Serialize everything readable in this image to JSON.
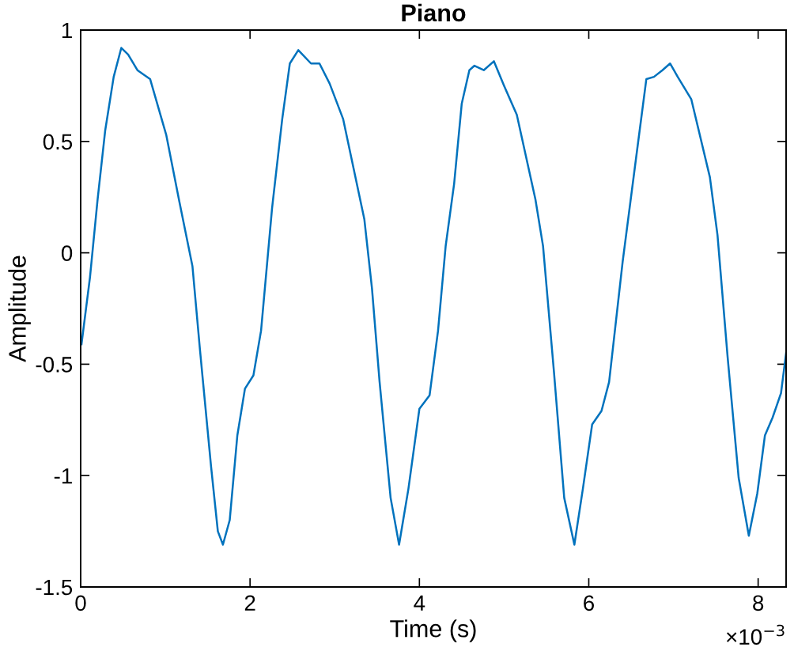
{
  "chart_data": {
    "type": "line",
    "title": "Piano",
    "xlabel": "Time (s)",
    "ylabel": "Amplitude",
    "annotations": [
      "×10$^{−3}$"
    ],
    "x": [
      0.01,
      0.11,
      0.2,
      0.29,
      0.39,
      0.48,
      0.56,
      0.67,
      0.82,
      1.01,
      1.16,
      1.32,
      1.41,
      1.54,
      1.62,
      1.68,
      1.76,
      1.85,
      1.94,
      2.04,
      2.13,
      2.26,
      2.38,
      2.47,
      2.57,
      2.72,
      2.82,
      2.94,
      3.1,
      3.35,
      3.44,
      3.53,
      3.66,
      3.76,
      3.87,
      4.0,
      4.12,
      4.22,
      4.31,
      4.41,
      4.5,
      4.59,
      4.65,
      4.76,
      4.88,
      5.0,
      5.15,
      5.37,
      5.46,
      5.59,
      5.71,
      5.83,
      5.93,
      6.04,
      6.15,
      6.24,
      6.4,
      6.56,
      6.68,
      6.77,
      6.87,
      6.96,
      7.05,
      7.21,
      7.43,
      7.52,
      7.64,
      7.77,
      7.89,
      7.99,
      8.08,
      8.17,
      8.27,
      8.33
    ],
    "series": [
      {
        "color": "#0072bd",
        "values": [
          -0.41,
          -0.11,
          0.24,
          0.55,
          0.79,
          0.92,
          0.89,
          0.82,
          0.78,
          0.53,
          0.24,
          -0.06,
          -0.44,
          -0.96,
          -1.25,
          -1.31,
          -1.2,
          -0.82,
          -0.61,
          -0.55,
          -0.35,
          0.2,
          0.6,
          0.85,
          0.91,
          0.85,
          0.85,
          0.76,
          0.6,
          0.15,
          -0.16,
          -0.58,
          -1.1,
          -1.31,
          -1.06,
          -0.7,
          -0.64,
          -0.35,
          0.03,
          0.31,
          0.67,
          0.82,
          0.84,
          0.82,
          0.86,
          0.75,
          0.62,
          0.24,
          0.03,
          -0.54,
          -1.1,
          -1.31,
          -1.06,
          -0.77,
          -0.71,
          -0.58,
          -0.04,
          0.43,
          0.78,
          0.79,
          0.82,
          0.85,
          0.79,
          0.69,
          0.34,
          0.08,
          -0.47,
          -1.01,
          -1.27,
          -1.08,
          -0.82,
          -0.74,
          -0.63,
          -0.45
        ]
      }
    ],
    "xlim": [
      0,
      8.33
    ],
    "ylim": [
      -1.5,
      1
    ],
    "xticks": [
      0,
      2,
      4,
      6,
      8
    ],
    "yticks": [
      -1.5,
      -1,
      -0.5,
      0,
      0.5,
      1
    ],
    "grid": false,
    "line_style": "solid",
    "marker": "none"
  }
}
